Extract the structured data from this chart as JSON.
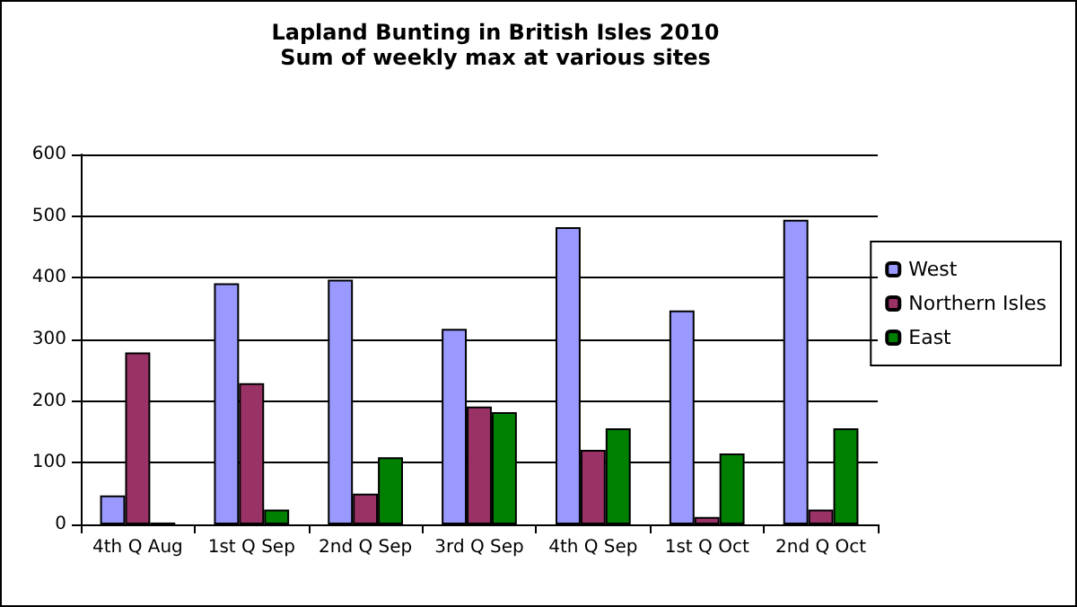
{
  "chart_data": {
    "type": "bar",
    "title": "Lapland Bunting in British Isles 2010",
    "subtitle": "Sum of weekly max at various sites",
    "categories": [
      "4th Q Aug",
      "1st Q Sep",
      "2nd Q Sep",
      "3rd Q Sep",
      "4th Q Sep",
      "1st Q Oct",
      "2nd Q Oct"
    ],
    "series": [
      {
        "name": "West",
        "color": "#9999ff",
        "values": [
          47,
          391,
          397,
          317,
          482,
          347,
          494
        ]
      },
      {
        "name": "Northern Isles",
        "color": "#993366",
        "values": [
          279,
          229,
          50,
          191,
          121,
          12,
          24
        ]
      },
      {
        "name": "East",
        "color": "#008000",
        "values": [
          3,
          24,
          109,
          182,
          156,
          115,
          156
        ]
      }
    ],
    "ylim": [
      0,
      600
    ],
    "yticks": [
      0,
      100,
      200,
      300,
      400,
      500,
      600
    ],
    "grid": "y",
    "legend": "right"
  }
}
